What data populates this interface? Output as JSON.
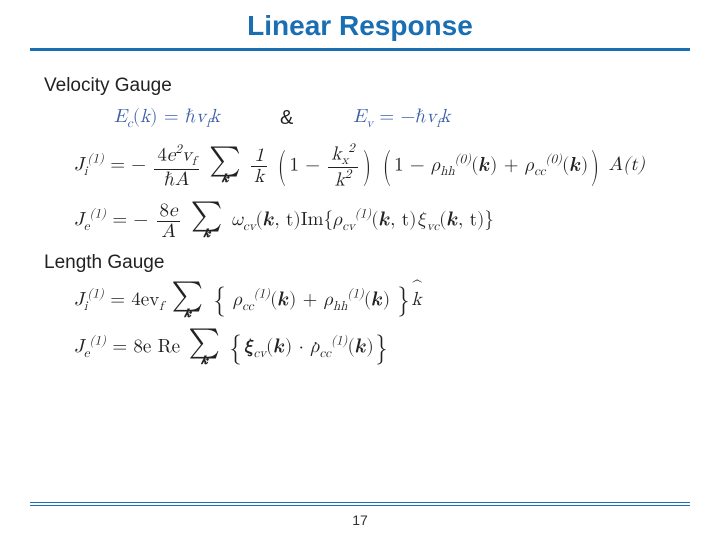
{
  "colors": {
    "title": "#1a6fb3",
    "rule": "#1a6fb3",
    "eqblue": "#3d5fa8",
    "text": "#222222",
    "footer_rule": "#1a6fb3"
  },
  "title": "Linear Response",
  "sections": {
    "velocity": "Velocity Gauge",
    "length": "Length Gauge"
  },
  "eq": {
    "Ec_lhs": "E",
    "Ec_sub": "c",
    "k": "k",
    "eq": " = ",
    "hbar": "ℏ",
    "vf": "v",
    "f": "f",
    "amp": "&",
    "Ev_lhs": "E",
    "Ev_sub": "v",
    "neg": " = −",
    "Ji": "J",
    "Je": "J",
    "sup1": "(1)",
    "sup0": "(0)",
    "i": "i",
    "e": "e",
    "minus": " = −",
    "plus": " + ",
    "four_e2_vf": "4e²v",
    "hbarA": "ℏA",
    "one": "1",
    "one_minus": "1 − ",
    "kx2": "k",
    "x": "x",
    "two": "2",
    "k2": "k",
    "rho": "ρ",
    "hh": "hh",
    "cc": "cc",
    "cv": "cv",
    "At": "A(t)",
    "eight_e": "8e",
    "A": "A",
    "omega": "ω",
    "ktc": "(𝒌, t)",
    "kc": "(𝒌)",
    "Im": "Im",
    "Re": "Re",
    "xi": "ξ",
    "vc": "vc",
    "dot": "·",
    "four_evf_pre": " = 4ev",
    "eight_e_pre": " = 8e ",
    "space": " "
  },
  "page": "17"
}
